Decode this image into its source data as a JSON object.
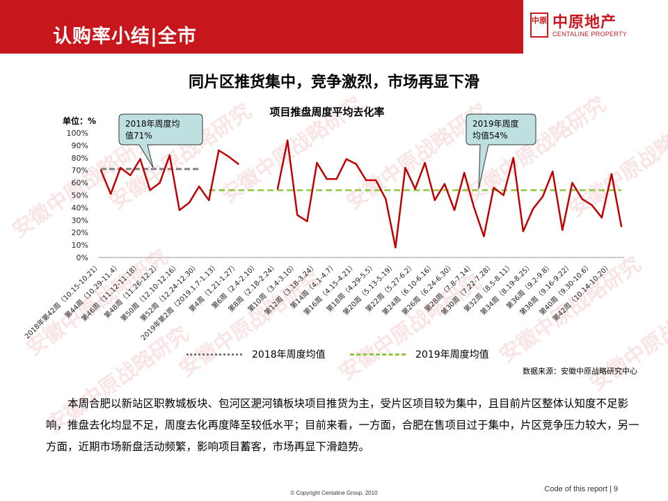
{
  "header": {
    "title": "认购率小结|全市"
  },
  "logo": {
    "seal_text": "中原",
    "name_cn": "中原地产",
    "name_en": "CENTALINE PROPERTY"
  },
  "subtitle": "同片区推货集中，竞争激烈，市场再显下滑",
  "watermark_text": "安徽中原战略研究",
  "source": "数据来源：安徽中原战略研究中心",
  "paragraph": "本周合肥以新站区职教城板块、包河区淝河镇板块项目推货为主，受片区项目较为集中，且目前片区整体认知度不足影响，推盘去化均显不足，周度去化再度降至较低水平；目前来看，一方面，合肥在售项目过于集中，片区竞争压力较大，另一方面，近期市场新盘活动频繁，影响项目蓄客，市场再显下滑趋势。",
  "footer": {
    "copyright": "© Copyright  Centaline Group, 2010",
    "code": "Code of this report  |  9"
  },
  "colors": {
    "brand_red": "#c8161d",
    "line": "#c00000",
    "avg_2018": "#808080",
    "avg_2019": "#8dc63f",
    "callout_fill": "#bfe0e0"
  },
  "chart_data": {
    "type": "line",
    "title": "项目推盘周度平均去化率",
    "unit_label": "单位：%",
    "ylim": [
      0,
      100
    ],
    "yticks": [
      "0%",
      "10%",
      "20%",
      "30%",
      "40%",
      "50%",
      "60%",
      "70%",
      "80%",
      "90%",
      "100%"
    ],
    "x_tick_labels": [
      "2018年第42周（10.15-10.21）",
      "第44周（10.29-11.4）",
      "第46周（11.12-11.18）",
      "第48周（11.26-12.2）",
      "第50周（12.10-12.16）",
      "第52周（12.24-12.30）",
      "2019年第2周（2019.1.7-1.13）",
      "第4周（1.21-1.27）",
      "第6周（2.4-2.10）",
      "第8周（2.18-2.24）",
      "第10周（3.4-3.10）",
      "第12周（3.18-3.24）",
      "第14周（4.1-4.7）",
      "第16周（4.15-4.21）",
      "第18周（4.29-5.5）",
      "第20周（5.13-5.19）",
      "第22周（5.27-6.2）",
      "第24周（6.10-6.16）",
      "第26周（6.24-6.30）",
      "第28周（7.8-7.14）",
      "第30周（7.22-7.28）",
      "第32周（8.5-8.11）",
      "第34周（8.19-8.25）",
      "第36周（9.2-9.8）",
      "第38周（9.16-9.22）",
      "第40周（9.30-10.6）",
      "第42周（10.14-10.20）"
    ],
    "series": [
      {
        "name": "",
        "values": [
          70,
          51,
          72,
          66,
          79,
          54,
          60,
          82,
          38,
          44,
          57,
          46,
          86,
          81,
          75,
          null,
          null,
          null,
          55,
          94,
          34,
          29,
          76,
          63,
          63,
          79,
          75,
          62,
          62,
          47,
          8,
          72,
          55,
          76,
          46,
          59,
          38,
          68,
          40,
          17,
          56,
          50,
          80,
          21,
          39,
          49,
          69,
          22,
          60,
          47,
          42,
          32,
          67,
          25
        ]
      }
    ],
    "averages": [
      {
        "name": "2018年周度均值",
        "value": 71,
        "callout": "2018年周度均值71%"
      },
      {
        "name": "2019年周度均值",
        "value": 54,
        "callout": "2019年周度均值54%"
      }
    ],
    "callout_2018": {
      "line1": "2018年周度均",
      "line2": "值71%"
    },
    "callout_2019": {
      "line1": "2019年周度",
      "line2": "均值54%"
    },
    "legend": [
      "2018年周度均值",
      "2019年周度均值"
    ],
    "legend_position": "bottom",
    "grid": false
  }
}
